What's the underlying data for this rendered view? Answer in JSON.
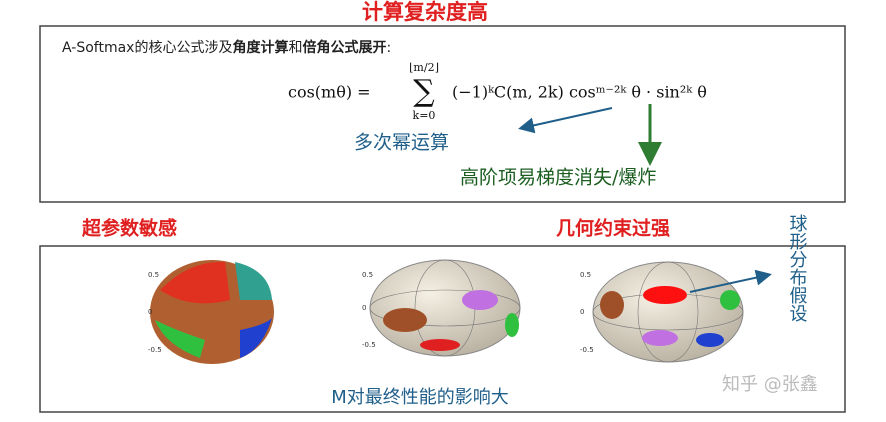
{
  "title": "计算复杂度高",
  "formula_section": {
    "intro": [
      "A-Softmax的核心公式涉及",
      "角度计算",
      "和",
      "倍角公式展开",
      ":"
    ],
    "formula": {
      "lhs": "cos(mθ) =",
      "sum": "∑",
      "upper": "⌊m/2⌋",
      "lower": "k=0",
      "terms": "(−1)ᵏC(m, 2k) cosᵐ⁻²ᵏ θ · sin²ᵏ θ"
    },
    "annotation_power": "多次幂运算",
    "annotation_gradient": "高阶项易梯度消失/爆炸"
  },
  "issues": {
    "hyperparam": "超参数敏感",
    "geometry": "几何约束过强"
  },
  "plots": {
    "ticks": [
      "0.5",
      "0",
      "-0.5"
    ],
    "side_label": "球形分布假设",
    "caption": "M对最终性能的影响大"
  },
  "watermark": "知乎 @张鑫"
}
